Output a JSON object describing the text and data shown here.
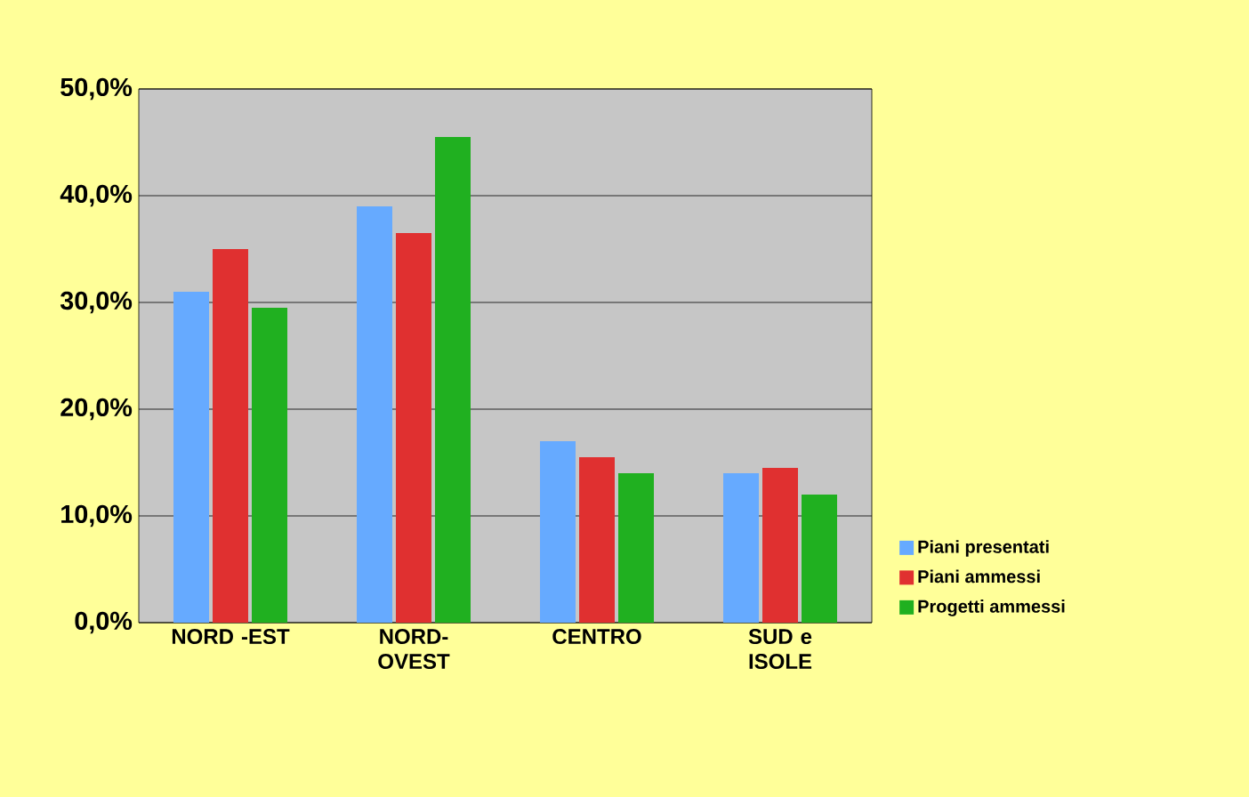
{
  "chart_data": {
    "type": "bar",
    "categories": [
      "NORD -EST",
      "NORD-OVEST",
      "CENTRO",
      "SUD e ISOLE"
    ],
    "series": [
      {
        "name": "Piani presentati",
        "color": "#66aaff",
        "values": [
          31,
          39,
          17,
          14
        ]
      },
      {
        "name": "Piani ammessi",
        "color": "#e03030",
        "values": [
          35,
          36.5,
          15.5,
          14.5
        ]
      },
      {
        "name": "Progetti ammessi",
        "color": "#20b020",
        "values": [
          29.5,
          45.5,
          14,
          12
        ]
      }
    ],
    "ylim": [
      0,
      50
    ],
    "yticks": [
      {
        "value": 0,
        "label": "0,0%"
      },
      {
        "value": 10,
        "label": "10,0%"
      },
      {
        "value": 20,
        "label": "20,0%"
      },
      {
        "value": 30,
        "label": "30,0%"
      },
      {
        "value": 40,
        "label": "40,0%"
      },
      {
        "value": 50,
        "label": "50,0%"
      }
    ],
    "grid": "y",
    "legend": "bottom right"
  }
}
